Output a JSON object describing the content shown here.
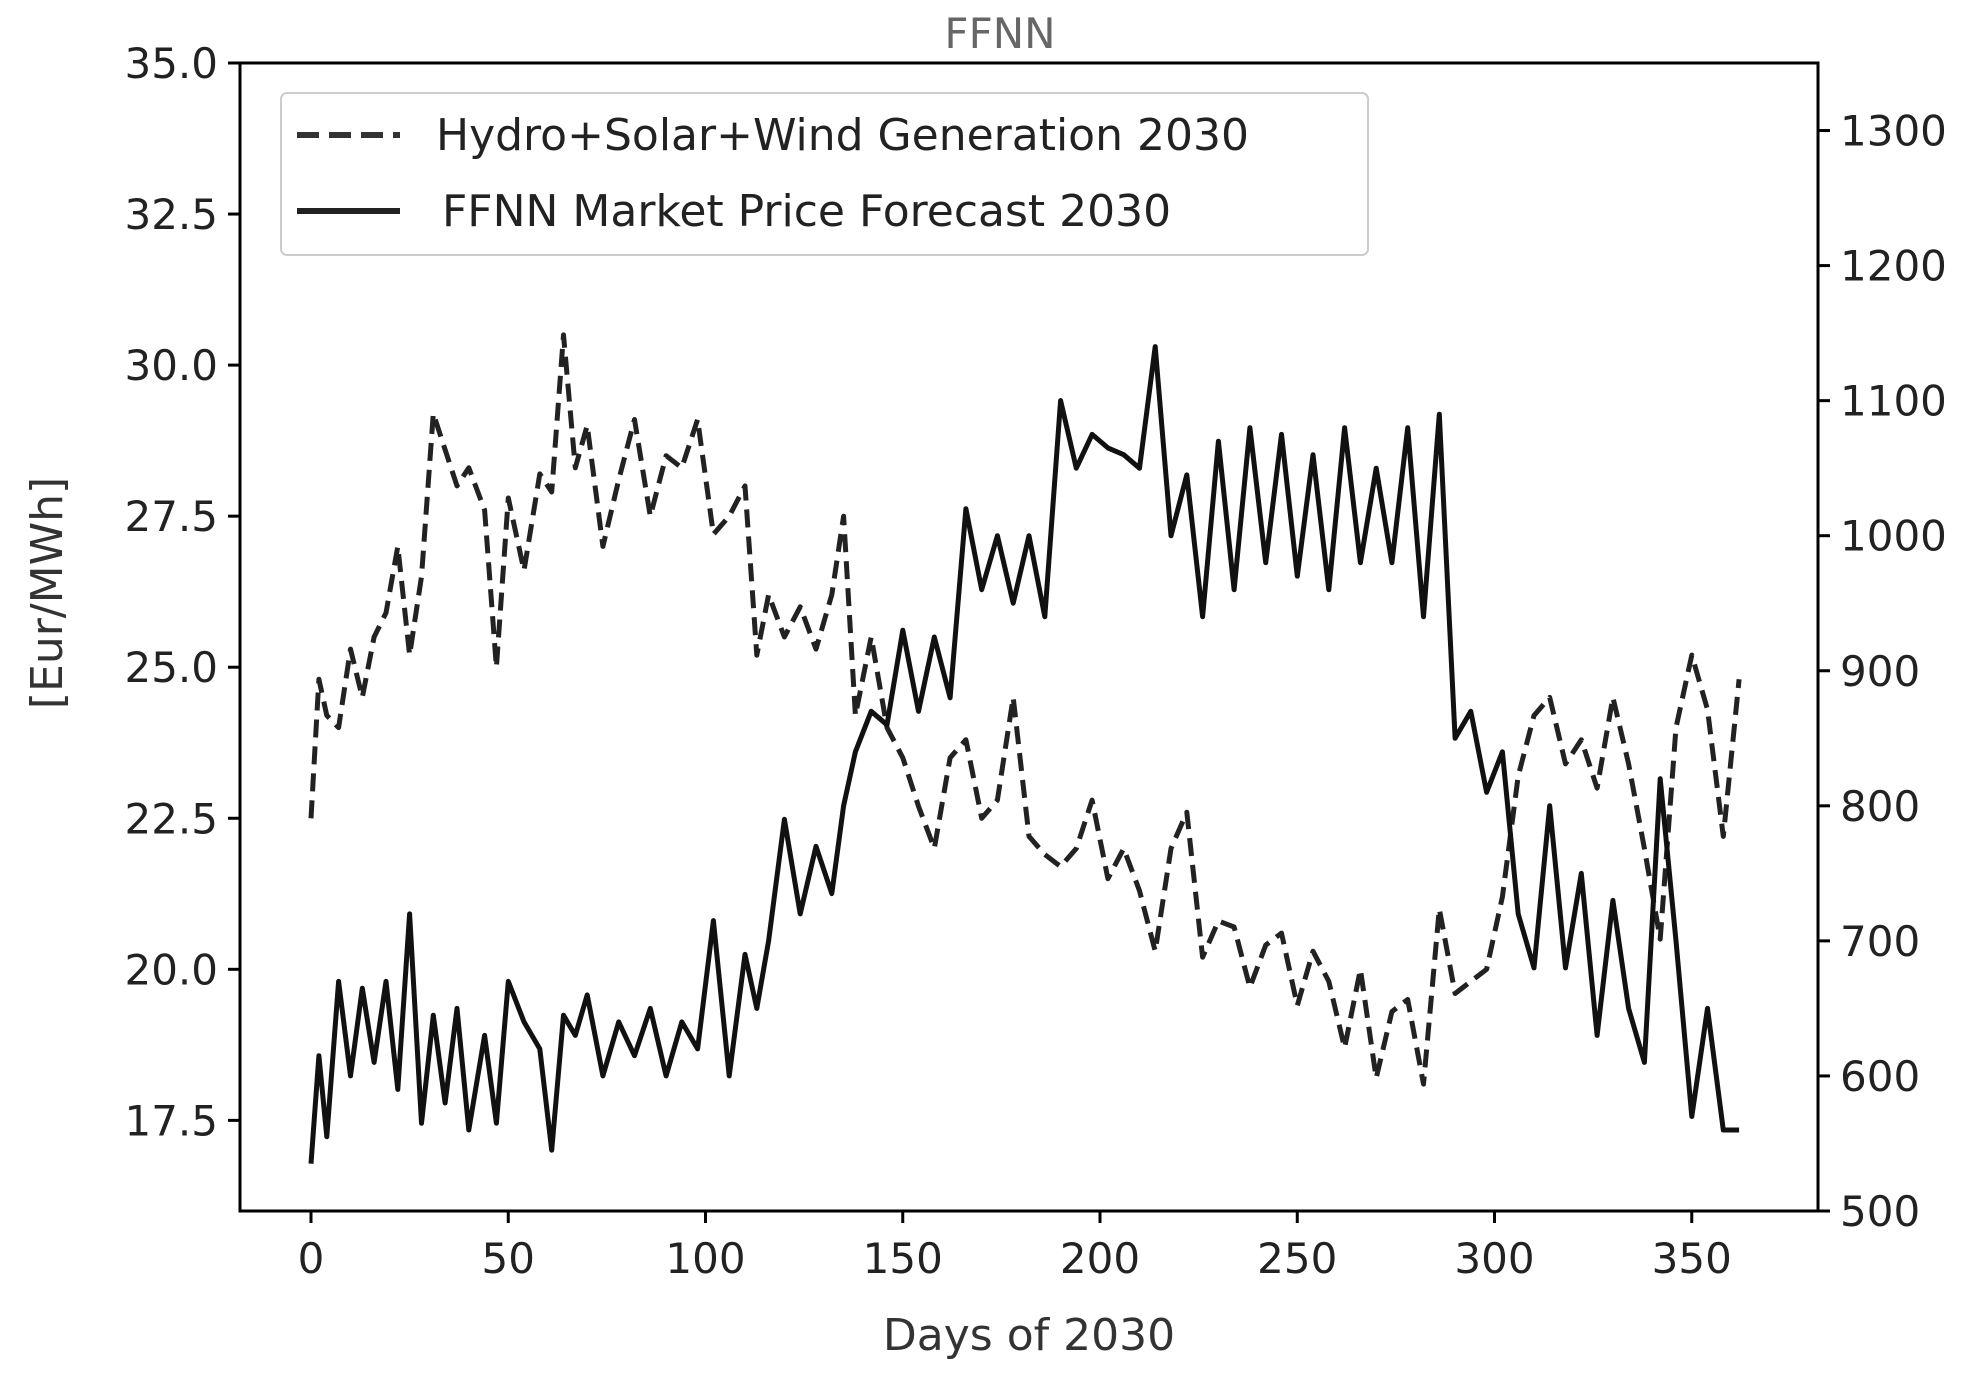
{
  "chart_data": {
    "type": "line",
    "title": "FFNN",
    "xlabel": "Days of 2030",
    "ylabel_left": "[Eur/MWh]",
    "ylabel_right": "",
    "xlim": [
      -18,
      382
    ],
    "ylim_left": [
      16.0,
      35.0
    ],
    "ylim_right": [
      500,
      1350
    ],
    "xticks": [
      0,
      50,
      100,
      150,
      200,
      250,
      300,
      350
    ],
    "yticks_left": [
      17.5,
      20.0,
      22.5,
      25.0,
      27.5,
      30.0,
      32.5,
      35.0
    ],
    "yticks_right": [
      500,
      600,
      700,
      800,
      900,
      1000,
      1100,
      1200,
      1300
    ],
    "xtick_labels": [
      "0",
      "50",
      "100",
      "150",
      "200",
      "250",
      "300",
      "350"
    ],
    "ytick_labels_left": [
      "17.5",
      "20.0",
      "22.5",
      "25.0",
      "27.5",
      "30.0",
      "32.5",
      "35.0"
    ],
    "ytick_labels_right": [
      "500",
      "600",
      "700",
      "800",
      "900",
      "1000",
      "1100",
      "1200",
      "1300"
    ],
    "grid": false,
    "legend_position": "top-left",
    "series": [
      {
        "name": "Hydro+Solar+Wind Generation 2030",
        "style": "dashed",
        "axis": "left",
        "x": [
          0,
          2,
          4,
          7,
          10,
          13,
          16,
          19,
          22,
          25,
          28,
          31,
          34,
          37,
          40,
          44,
          47,
          50,
          54,
          58,
          61,
          64,
          67,
          70,
          74,
          78,
          82,
          86,
          90,
          94,
          98,
          102,
          106,
          110,
          113,
          116,
          120,
          124,
          128,
          132,
          135,
          138,
          142,
          146,
          150,
          154,
          158,
          162,
          166,
          170,
          174,
          178,
          182,
          186,
          190,
          194,
          198,
          202,
          206,
          210,
          214,
          218,
          222,
          226,
          230,
          234,
          238,
          242,
          246,
          250,
          254,
          258,
          262,
          266,
          270,
          274,
          278,
          282,
          286,
          290,
          294,
          298,
          302,
          306,
          310,
          314,
          318,
          322,
          326,
          330,
          334,
          338,
          342,
          346,
          350,
          354,
          358,
          362
        ],
        "values": [
          22.5,
          24.8,
          24.2,
          24.0,
          25.3,
          24.5,
          25.5,
          25.9,
          27.0,
          25.2,
          26.5,
          29.2,
          28.6,
          28.0,
          28.3,
          27.6,
          25.0,
          27.8,
          26.6,
          28.2,
          27.9,
          30.5,
          28.3,
          29.0,
          27.0,
          28.1,
          29.1,
          27.5,
          28.5,
          28.3,
          29.1,
          27.2,
          27.5,
          28.0,
          25.2,
          26.2,
          25.5,
          26.0,
          25.3,
          26.2,
          27.5,
          24.2,
          25.5,
          24.0,
          23.5,
          22.7,
          22.0,
          23.5,
          23.8,
          22.5,
          22.8,
          24.5,
          22.2,
          21.9,
          21.7,
          22.0,
          22.8,
          21.5,
          22.0,
          21.3,
          20.3,
          22.0,
          22.6,
          20.2,
          20.8,
          20.7,
          19.7,
          20.4,
          20.6,
          19.4,
          20.3,
          19.8,
          18.7,
          20.0,
          18.2,
          19.3,
          19.5,
          18.1,
          21.0,
          19.6,
          19.8,
          20.0,
          21.2,
          23.2,
          24.2,
          24.5,
          23.4,
          23.8,
          23.0,
          24.5,
          23.4,
          22.0,
          20.5,
          24.0,
          25.2,
          24.3,
          22.2,
          24.8
        ]
      },
      {
        "name": "FFNN Market Price Forecast 2030",
        "style": "solid",
        "axis": "right",
        "x": [
          0,
          2,
          4,
          7,
          10,
          13,
          16,
          19,
          22,
          25,
          28,
          31,
          34,
          37,
          40,
          44,
          47,
          50,
          54,
          58,
          61,
          64,
          67,
          70,
          74,
          78,
          82,
          86,
          90,
          94,
          98,
          102,
          106,
          110,
          113,
          116,
          120,
          124,
          128,
          132,
          135,
          138,
          142,
          146,
          150,
          154,
          158,
          162,
          166,
          170,
          174,
          178,
          182,
          186,
          190,
          194,
          198,
          202,
          206,
          210,
          214,
          218,
          222,
          226,
          230,
          234,
          238,
          242,
          246,
          250,
          254,
          258,
          262,
          266,
          270,
          274,
          278,
          282,
          286,
          290,
          294,
          298,
          302,
          306,
          310,
          314,
          318,
          322,
          326,
          330,
          334,
          338,
          342,
          346,
          350,
          354,
          358,
          362
        ],
        "values": [
          535,
          615,
          555,
          670,
          600,
          665,
          610,
          670,
          590,
          720,
          565,
          645,
          580,
          650,
          560,
          630,
          565,
          670,
          640,
          620,
          545,
          645,
          630,
          660,
          600,
          640,
          615,
          650,
          600,
          640,
          620,
          715,
          600,
          690,
          650,
          700,
          790,
          720,
          770,
          735,
          800,
          840,
          870,
          860,
          930,
          870,
          925,
          880,
          1020,
          960,
          1000,
          950,
          1000,
          940,
          1100,
          1050,
          1075,
          1065,
          1060,
          1050,
          1140,
          1000,
          1045,
          940,
          1070,
          960,
          1080,
          980,
          1075,
          970,
          1060,
          960,
          1080,
          980,
          1050,
          980,
          1080,
          940,
          1090,
          850,
          870,
          810,
          840,
          720,
          680,
          800,
          680,
          750,
          630,
          730,
          650,
          610,
          820,
          700,
          570,
          650,
          560,
          560
        ]
      }
    ]
  }
}
